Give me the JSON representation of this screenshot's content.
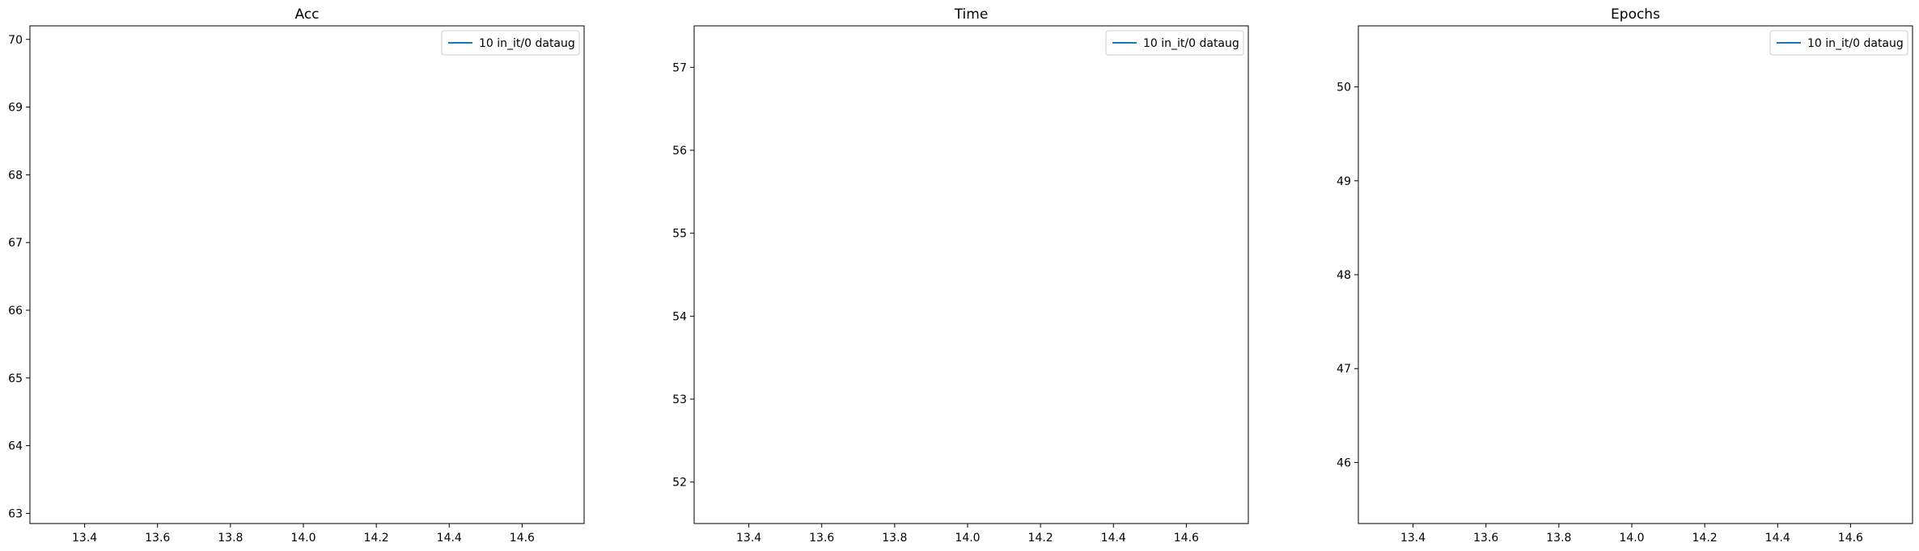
{
  "chart_data": [
    {
      "type": "line",
      "title": "Acc",
      "xlabel": "",
      "ylabel": "",
      "xlim": [
        13.25,
        14.77
      ],
      "ylim": [
        62.85,
        70.2
      ],
      "xticks": [
        13.4,
        13.6,
        13.8,
        14.0,
        14.2,
        14.4,
        14.6
      ],
      "xtick_labels": [
        "13.4",
        "13.6",
        "13.8",
        "14.0",
        "14.2",
        "14.4",
        "14.6"
      ],
      "yticks": [
        63,
        64,
        65,
        66,
        67,
        68,
        69,
        70
      ],
      "ytick_labels": [
        "63",
        "64",
        "65",
        "66",
        "67",
        "68",
        "69",
        "70"
      ],
      "legend_position": "top-right",
      "grid": false,
      "series": [
        {
          "name": "10 in_it/0 dataug",
          "color": "#1f77b4",
          "x": [],
          "y": []
        }
      ]
    },
    {
      "type": "line",
      "title": "Time",
      "xlabel": "",
      "ylabel": "",
      "xlim": [
        13.25,
        14.77
      ],
      "ylim": [
        51.5,
        57.5
      ],
      "xticks": [
        13.4,
        13.6,
        13.8,
        14.0,
        14.2,
        14.4,
        14.6
      ],
      "xtick_labels": [
        "13.4",
        "13.6",
        "13.8",
        "14.0",
        "14.2",
        "14.4",
        "14.6"
      ],
      "yticks": [
        52,
        53,
        54,
        55,
        56,
        57
      ],
      "ytick_labels": [
        "52",
        "53",
        "54",
        "55",
        "56",
        "57"
      ],
      "legend_position": "top-right",
      "grid": false,
      "series": [
        {
          "name": "10 in_it/0 dataug",
          "color": "#1f77b4",
          "x": [],
          "y": []
        }
      ]
    },
    {
      "type": "line",
      "title": "Epochs",
      "xlabel": "",
      "ylabel": "",
      "xlim": [
        13.25,
        14.77
      ],
      "ylim": [
        45.35,
        50.65
      ],
      "xticks": [
        13.4,
        13.6,
        13.8,
        14.0,
        14.2,
        14.4,
        14.6
      ],
      "xtick_labels": [
        "13.4",
        "13.6",
        "13.8",
        "14.0",
        "14.2",
        "14.4",
        "14.6"
      ],
      "yticks": [
        46,
        47,
        48,
        49,
        50
      ],
      "ytick_labels": [
        "46",
        "47",
        "48",
        "49",
        "50"
      ],
      "legend_position": "top-right",
      "grid": false,
      "series": [
        {
          "name": "10 in_it/0 dataug",
          "color": "#1f77b4",
          "x": [],
          "y": []
        }
      ]
    }
  ]
}
